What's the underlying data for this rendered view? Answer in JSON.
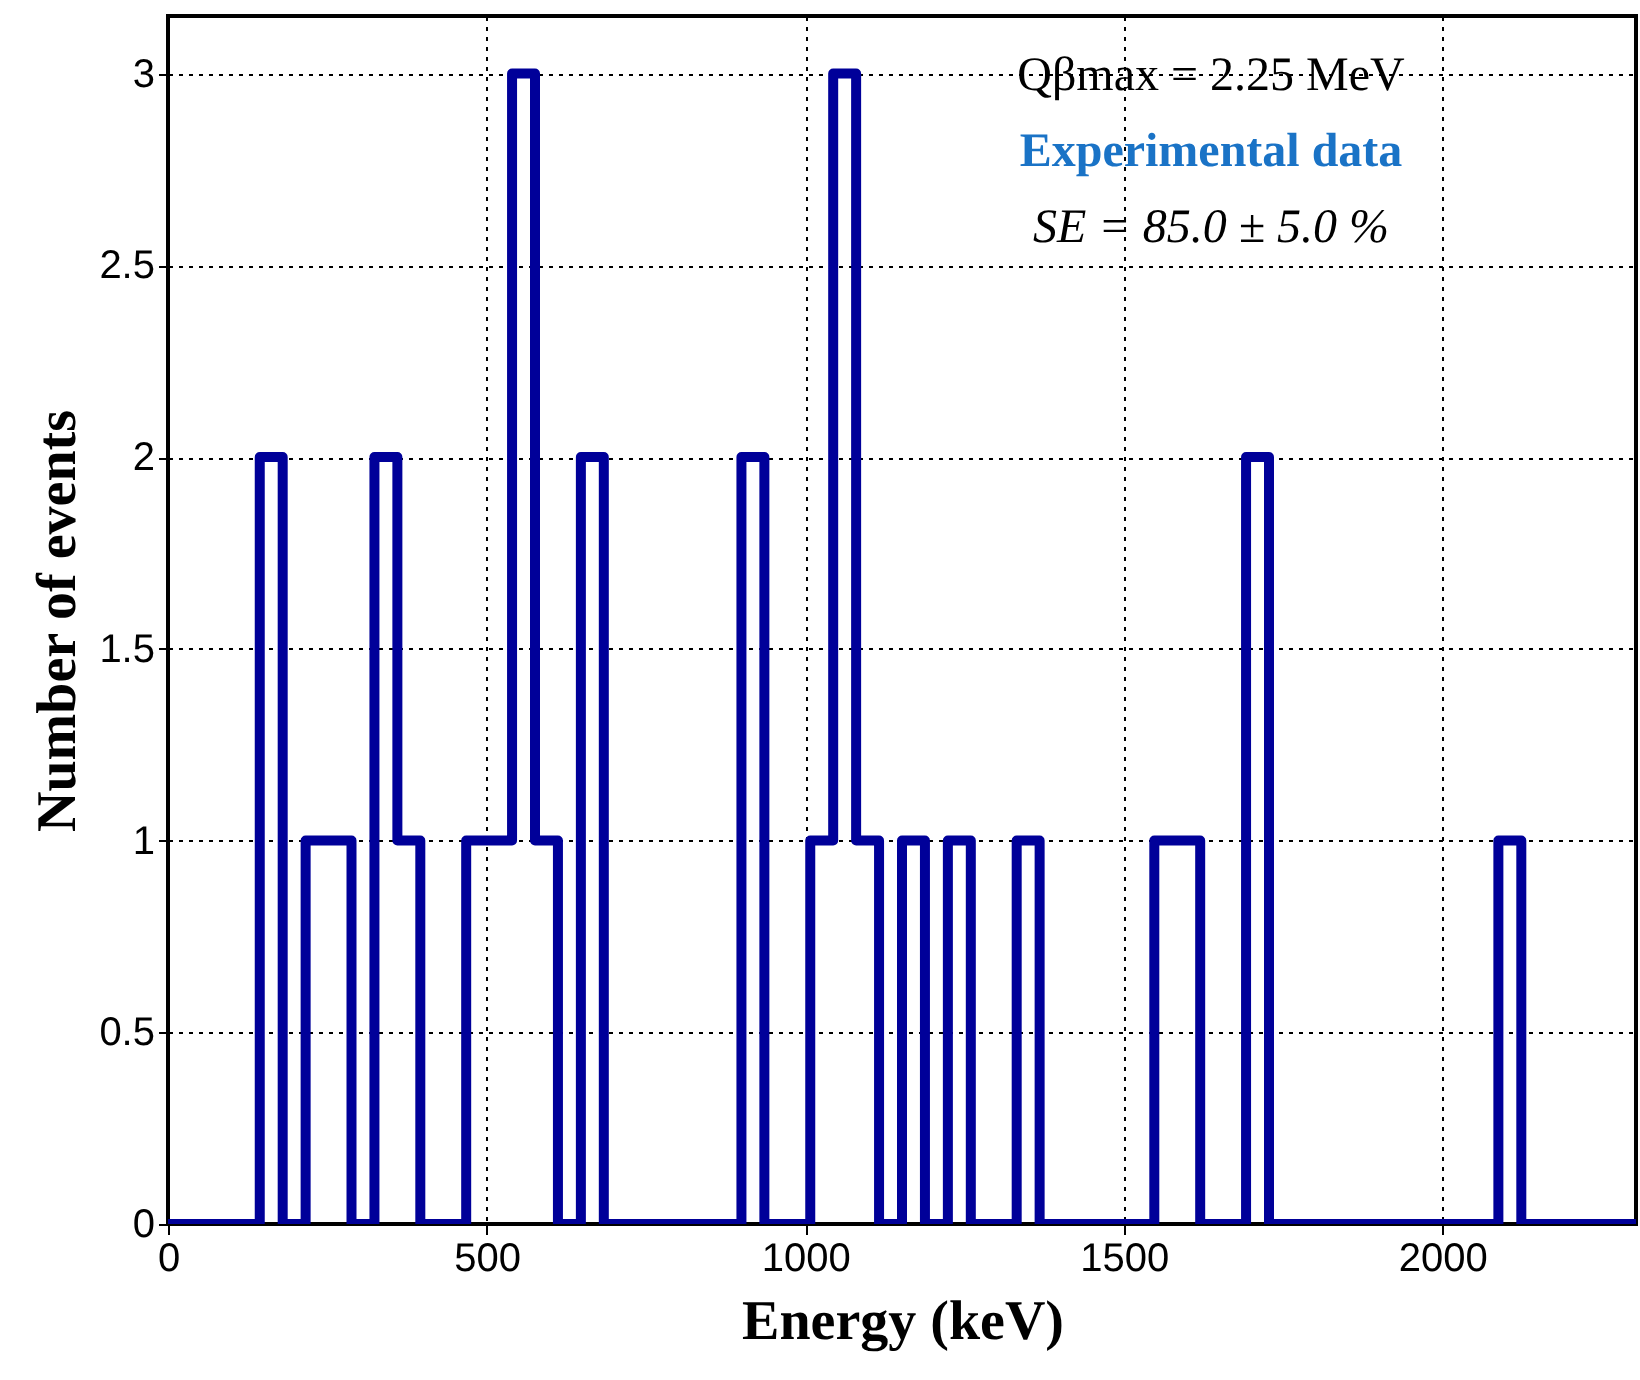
{
  "chart_data": {
    "type": "histogram",
    "xlabel": "Energy (keV)",
    "ylabel": "Number of events",
    "bins": [
      0,
      36,
      72,
      108,
      144,
      180,
      216,
      252,
      288,
      324,
      360,
      396,
      432,
      468,
      504,
      540,
      576,
      612,
      648,
      684,
      720,
      756,
      792,
      828,
      864,
      900,
      936,
      972,
      1008,
      1044,
      1080,
      1116,
      1152,
      1188,
      1224,
      1260,
      1296,
      1332,
      1368,
      1404,
      1440,
      1476,
      1512,
      1548,
      1584,
      1620,
      1656,
      1692,
      1728,
      1764,
      1800,
      1836,
      1872,
      1908,
      1944,
      1980,
      2016,
      2052,
      2088,
      2124,
      2160,
      2196,
      2232,
      2268,
      2304
    ],
    "values": [
      0,
      0,
      0,
      0,
      2,
      0,
      1,
      1,
      0,
      2,
      1,
      0,
      0,
      1,
      1,
      3,
      1,
      0,
      2,
      0,
      0,
      0,
      0,
      0,
      0,
      2,
      0,
      0,
      1,
      3,
      1,
      0,
      1,
      0,
      1,
      0,
      0,
      1,
      0,
      0,
      0,
      0,
      0,
      1,
      1,
      0,
      0,
      2,
      0,
      0,
      0,
      0,
      0,
      0,
      0,
      0,
      0,
      0,
      1,
      0,
      0,
      0,
      0,
      0
    ],
    "color": "#000099",
    "xlim": [
      0,
      2304
    ],
    "xticks": [
      0,
      500,
      1000,
      1500,
      2000
    ],
    "ylim": [
      0,
      3.15
    ],
    "yticks": [
      0,
      0.5,
      1,
      1.5,
      2,
      2.5,
      3
    ],
    "grid": true,
    "annotations": [
      "Qβmax = 2.25 MeV",
      "Experimental data",
      "SE = 85.0 ± 5.0 %"
    ]
  }
}
